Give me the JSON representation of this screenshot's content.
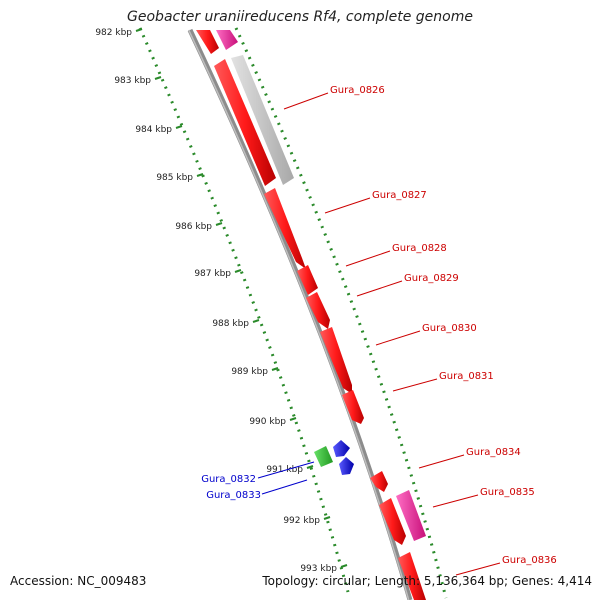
{
  "title": "Geobacter uraniireducens Rf4, complete genome",
  "footer": {
    "accession": "Accession: NC_009483",
    "summary": "Topology: circular; Length: 5,136,364 bp; Genes: 4,414"
  },
  "ticks": [
    "982 kbp",
    "983 kbp",
    "984 kbp",
    "985 kbp",
    "986 kbp",
    "987 kbp",
    "988 kbp",
    "989 kbp",
    "990 kbp",
    "991 kbp",
    "992 kbp",
    "993 kbp"
  ],
  "gene_labels": {
    "forward": [
      "Gura_0826",
      "Gura_0827",
      "Gura_0828",
      "Gura_0829",
      "Gura_0830",
      "Gura_0831",
      "Gura_0834",
      "Gura_0835",
      "Gura_0836"
    ],
    "reverse": [
      "Gura_0832",
      "Gura_0833"
    ]
  },
  "colors": {
    "gene_red": "#ff1a1a",
    "gene_pink": "#e8198c",
    "gene_gray": "#c0c0c0",
    "gene_green": "#33cc33",
    "gene_blue": "#1a1aee",
    "label_red": "#cc0000",
    "label_blue": "#0000cc",
    "dots_green": "#2a8a2a",
    "backbone": "#8c8c8c"
  }
}
